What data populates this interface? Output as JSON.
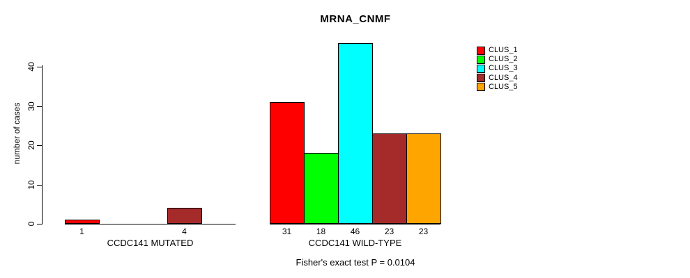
{
  "chart_data": {
    "type": "bar",
    "title": "MRNA_CNMF",
    "ylabel": "number of cases",
    "footnote": "Fisher's exact test P = 0.0104",
    "yticks": [
      0,
      10,
      20,
      30,
      40
    ],
    "ylim": [
      0,
      46
    ],
    "grid": false,
    "legend_position": "top-right-outside",
    "bar_border_color": "#000000",
    "clusters": [
      {
        "name": "CLUS_1",
        "color": "#FF0000"
      },
      {
        "name": "CLUS_2",
        "color": "#00FF00"
      },
      {
        "name": "CLUS_3",
        "color": "#00FFFF"
      },
      {
        "name": "CLUS_4",
        "color": "#A52A2A"
      },
      {
        "name": "CLUS_5",
        "color": "#FFA500"
      }
    ],
    "groups": [
      {
        "label": "CCDC141 MUTATED",
        "values": [
          1,
          0,
          0,
          4,
          0
        ],
        "value_labels": [
          "1",
          "",
          "",
          "4",
          ""
        ]
      },
      {
        "label": "CCDC141 WILD-TYPE",
        "values": [
          31,
          18,
          46,
          23,
          23
        ],
        "value_labels": [
          "31",
          "18",
          "46",
          "23",
          "23"
        ]
      }
    ]
  }
}
